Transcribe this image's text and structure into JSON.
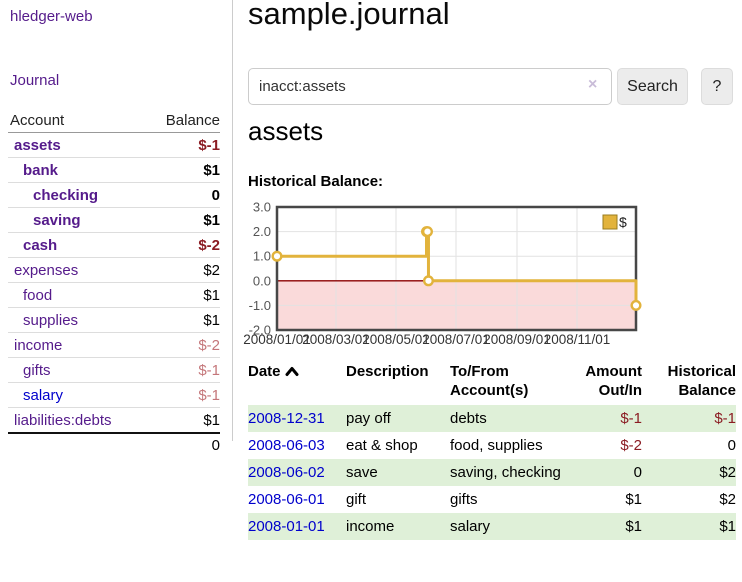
{
  "sidebar": {
    "title": "hledger-web",
    "nav": {
      "journal": "Journal"
    },
    "accounts": {
      "col_account": "Account",
      "col_balance": "Balance",
      "rows": [
        {
          "name": "assets",
          "balance": "$-1"
        },
        {
          "name": "bank",
          "balance": "$1"
        },
        {
          "name": "checking",
          "balance": "0"
        },
        {
          "name": "saving",
          "balance": "$1"
        },
        {
          "name": "cash",
          "balance": "$-2"
        },
        {
          "name": "expenses",
          "balance": "$2"
        },
        {
          "name": "food",
          "balance": "$1"
        },
        {
          "name": "supplies",
          "balance": "$1"
        },
        {
          "name": "income",
          "balance": "$-2"
        },
        {
          "name": "gifts",
          "balance": "$-1"
        },
        {
          "name": "salary",
          "balance": "$-1"
        },
        {
          "name": "liabilities:debts",
          "balance": "$1"
        }
      ],
      "total": "0"
    }
  },
  "main": {
    "title": "sample.journal",
    "search": {
      "query": "inacct:assets",
      "clear": "×",
      "search_button": "Search",
      "help_button": "?"
    },
    "account_heading": "assets",
    "chart_heading": "Historical Balance:",
    "register": {
      "headers": {
        "date": "Date",
        "description": "Description",
        "tofrom": "To/From Account(s)",
        "amount": "Amount Out/In",
        "balance": "Historical Balance"
      },
      "rows": [
        {
          "date": "2008-12-31",
          "description": "pay off",
          "accounts": "debts",
          "amount": "$-1",
          "balance": "$-1"
        },
        {
          "date": "2008-06-03",
          "description": "eat & shop",
          "accounts": "food, supplies",
          "amount": "$-2",
          "balance": "0"
        },
        {
          "date": "2008-06-02",
          "description": "save",
          "accounts": "saving, checking",
          "amount": "0",
          "balance": "$2"
        },
        {
          "date": "2008-06-01",
          "description": "gift",
          "accounts": "gifts",
          "amount": "$1",
          "balance": "$2"
        },
        {
          "date": "2008-01-01",
          "description": "income",
          "accounts": "salary",
          "amount": "$1",
          "balance": "$1"
        }
      ]
    }
  },
  "chart_data": {
    "type": "line",
    "step": "after",
    "title": "Historical Balance:",
    "series": [
      {
        "name": "$",
        "x": [
          "2008-01-01",
          "2008-06-01",
          "2008-06-02",
          "2008-06-03",
          "2008-12-31"
        ],
        "values": [
          1,
          2,
          2,
          0,
          -1
        ]
      }
    ],
    "xlim": [
      "2008-01-01",
      "2008-12-31"
    ],
    "ylim": [
      -2,
      3
    ],
    "y_ticks": [
      -2,
      -1,
      0,
      1,
      2,
      3
    ],
    "x_ticks": [
      "2008-01-01",
      "2008-03-01",
      "2008-05-01",
      "2008-07-01",
      "2008-09-01",
      "2008-11-01"
    ],
    "x_tick_labels": [
      "2008/01/01",
      "2008/03/01",
      "2008/05/01",
      "2008/07/01",
      "2008/09/01",
      "2008/11/01"
    ],
    "legend_position": "top-right",
    "grid": true,
    "line_color": "#e2b33c",
    "marker_fill": "#ffffff",
    "negative_fill": "#fadada",
    "zero_line_color": "#8b0000",
    "border_color": "#474747"
  },
  "colors": {
    "accent_purple": "#551b8b",
    "link_blue": "#0000cc",
    "negative_strong": "#8b1c23",
    "negative_dim": "#c4767a",
    "row_green": "#dff0d8",
    "chart_gold": "#e2b33c"
  }
}
